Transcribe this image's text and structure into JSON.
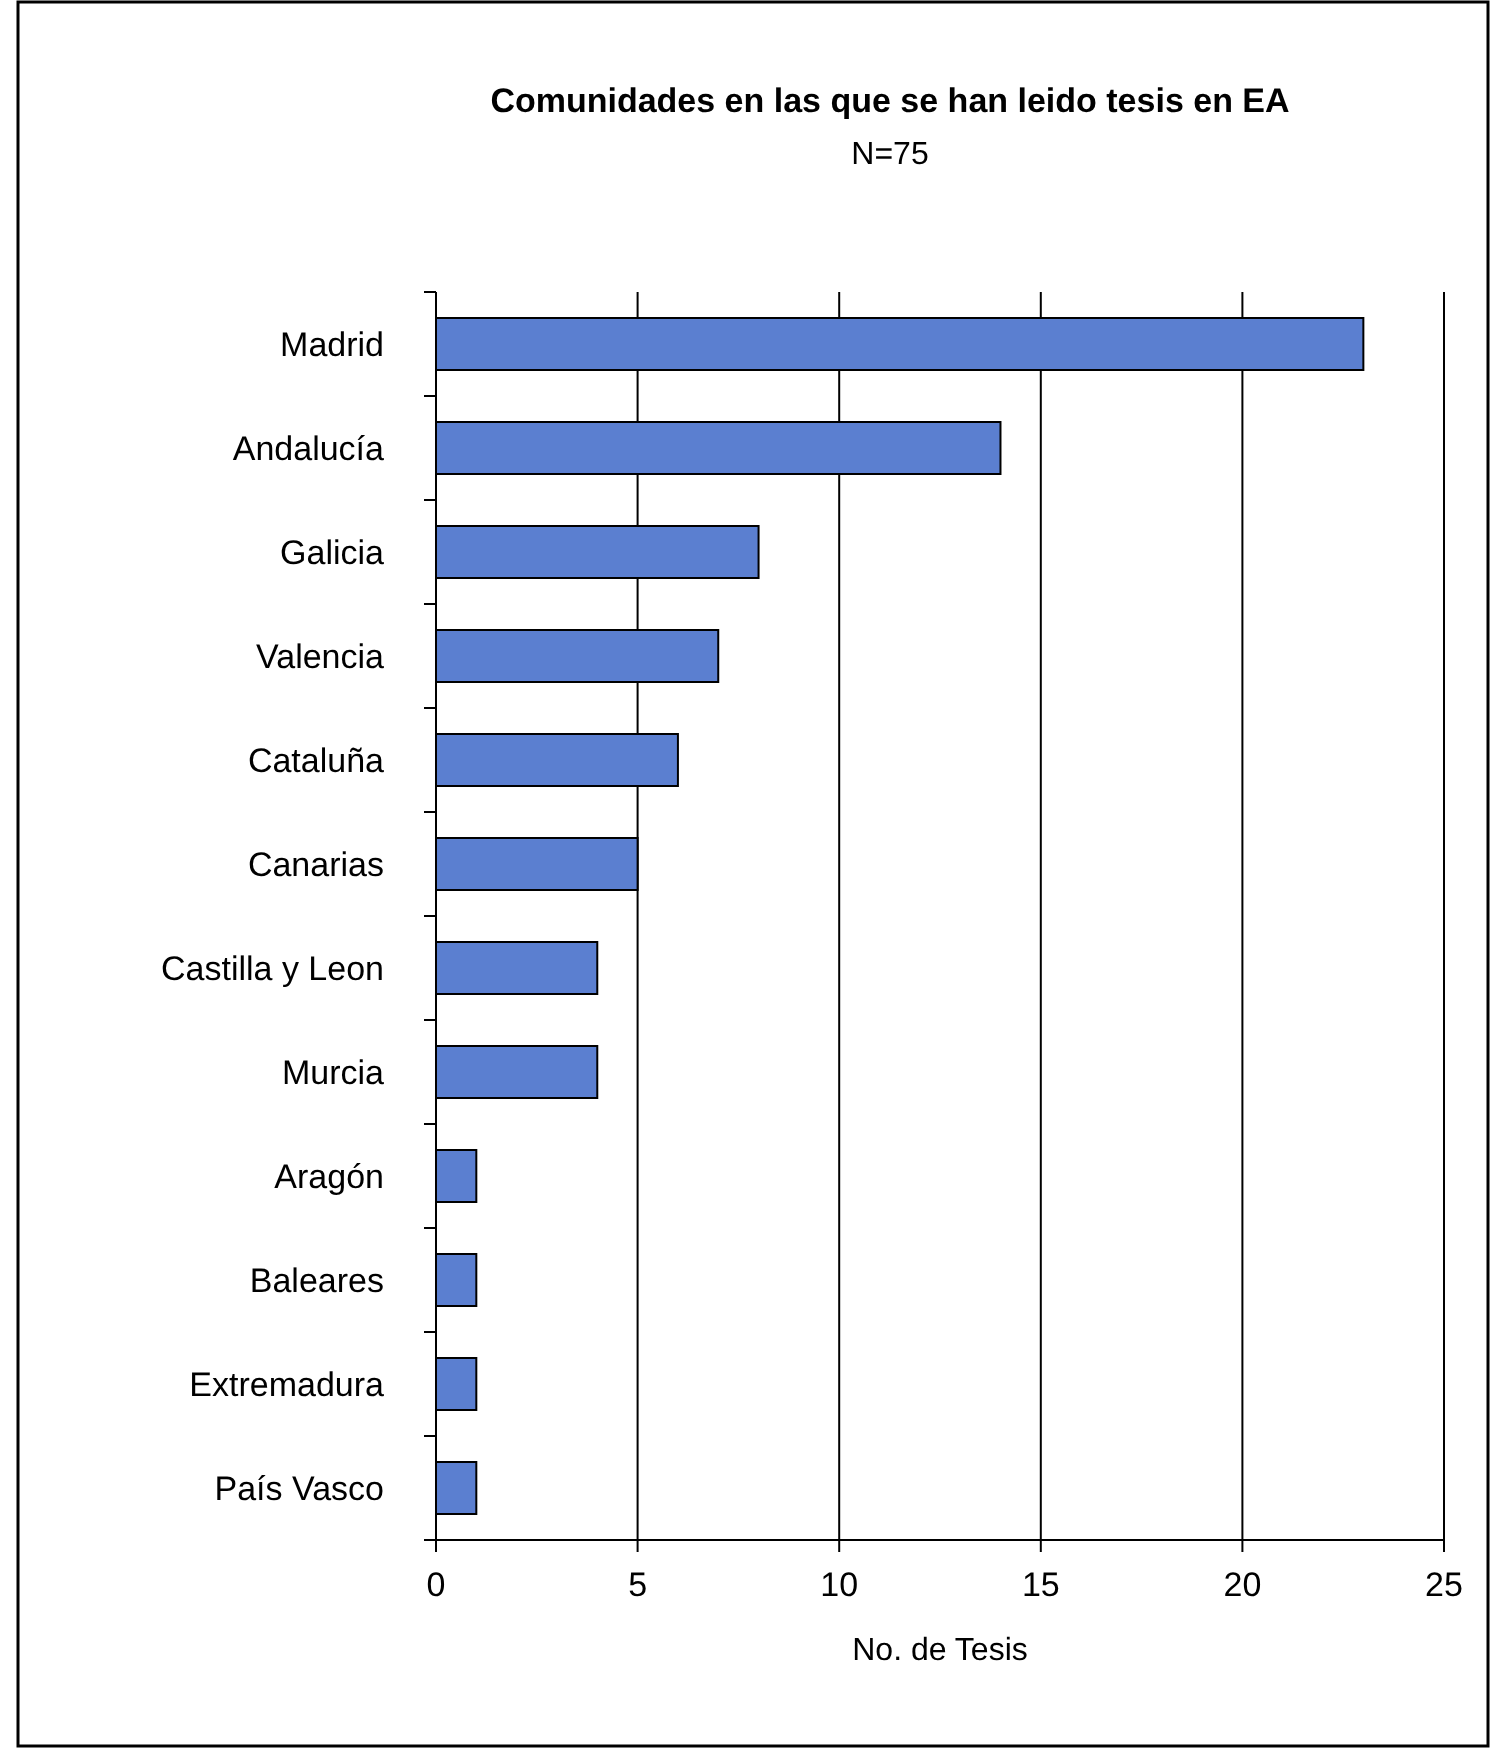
{
  "chart_data": {
    "type": "bar",
    "orientation": "horizontal",
    "title": "Comunidades en las que se han leido tesis en EA",
    "subtitle": "N=75",
    "xlabel": "No. de Tesis",
    "categories": [
      "Madrid",
      "Andalucía",
      "Galicia",
      "Valencia",
      "Cataluña",
      "Canarias",
      "Castilla y Leon",
      "Murcia",
      "Aragón",
      "Baleares",
      "Extremadura",
      "País Vasco"
    ],
    "values": [
      23,
      14,
      8,
      7,
      6,
      5,
      4,
      4,
      1,
      1,
      1,
      1
    ],
    "color": "#5b7fd0",
    "xlim": [
      0,
      25
    ],
    "xticks": [
      0,
      5,
      10,
      15,
      20,
      25
    ],
    "grid": "x"
  }
}
